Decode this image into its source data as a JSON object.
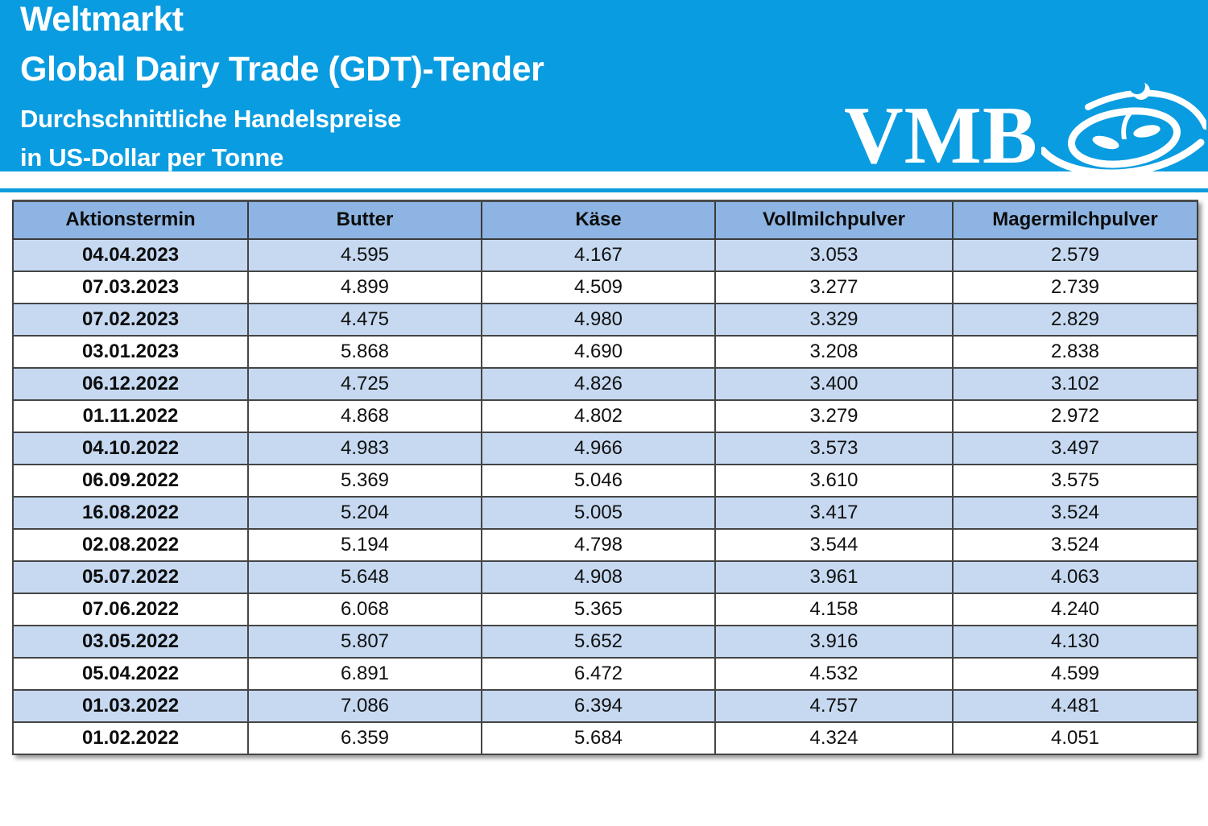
{
  "banner": {
    "title_line1": "Weltmarkt",
    "title_line2": "Global Dairy Trade (GDT)-Tender",
    "subtitle_line1": "Durchschnittliche Handelspreise",
    "subtitle_line2": "in US-Dollar per Tonne",
    "logo_text": "VMB"
  },
  "colors": {
    "banner_blue": "#0A9CE0",
    "table_header_fill": "#8DB4E2",
    "table_stripe_fill": "#C6D9F1",
    "text_on_banner": "#FFFFFF",
    "table_text": "#111111"
  },
  "chart_data": {
    "type": "table",
    "title": "Weltmarkt Global Dairy Trade (GDT)-Tender",
    "subtitle": "Durchschnittliche Handelspreise in US-Dollar per Tonne",
    "columns": [
      "Aktionstermin",
      "Butter",
      "Käse",
      "Vollmilchpulver",
      "Magermilchpulver"
    ],
    "rows": [
      [
        "04.04.2023",
        "4.595",
        "4.167",
        "3.053",
        "2.579"
      ],
      [
        "07.03.2023",
        "4.899",
        "4.509",
        "3.277",
        "2.739"
      ],
      [
        "07.02.2023",
        "4.475",
        "4.980",
        "3.329",
        "2.829"
      ],
      [
        "03.01.2023",
        "5.868",
        "4.690",
        "3.208",
        "2.838"
      ],
      [
        "06.12.2022",
        "4.725",
        "4.826",
        "3.400",
        "3.102"
      ],
      [
        "01.11.2022",
        "4.868",
        "4.802",
        "3.279",
        "2.972"
      ],
      [
        "04.10.2022",
        "4.983",
        "4.966",
        "3.573",
        "3.497"
      ],
      [
        "06.09.2022",
        "5.369",
        "5.046",
        "3.610",
        "3.575"
      ],
      [
        "16.08.2022",
        "5.204",
        "5.005",
        "3.417",
        "3.524"
      ],
      [
        "02.08.2022",
        "5.194",
        "4.798",
        "3.544",
        "3.524"
      ],
      [
        "05.07.2022",
        "5.648",
        "4.908",
        "3.961",
        "4.063"
      ],
      [
        "07.06.2022",
        "6.068",
        "5.365",
        "4.158",
        "4.240"
      ],
      [
        "03.05.2022",
        "5.807",
        "5.652",
        "3.916",
        "4.130"
      ],
      [
        "05.04.2022",
        "6.891",
        "6.472",
        "4.532",
        "4.599"
      ],
      [
        "01.03.2022",
        "7.086",
        "6.394",
        "4.757",
        "4.481"
      ],
      [
        "01.02.2022",
        "6.359",
        "5.684",
        "4.324",
        "4.051"
      ]
    ]
  }
}
